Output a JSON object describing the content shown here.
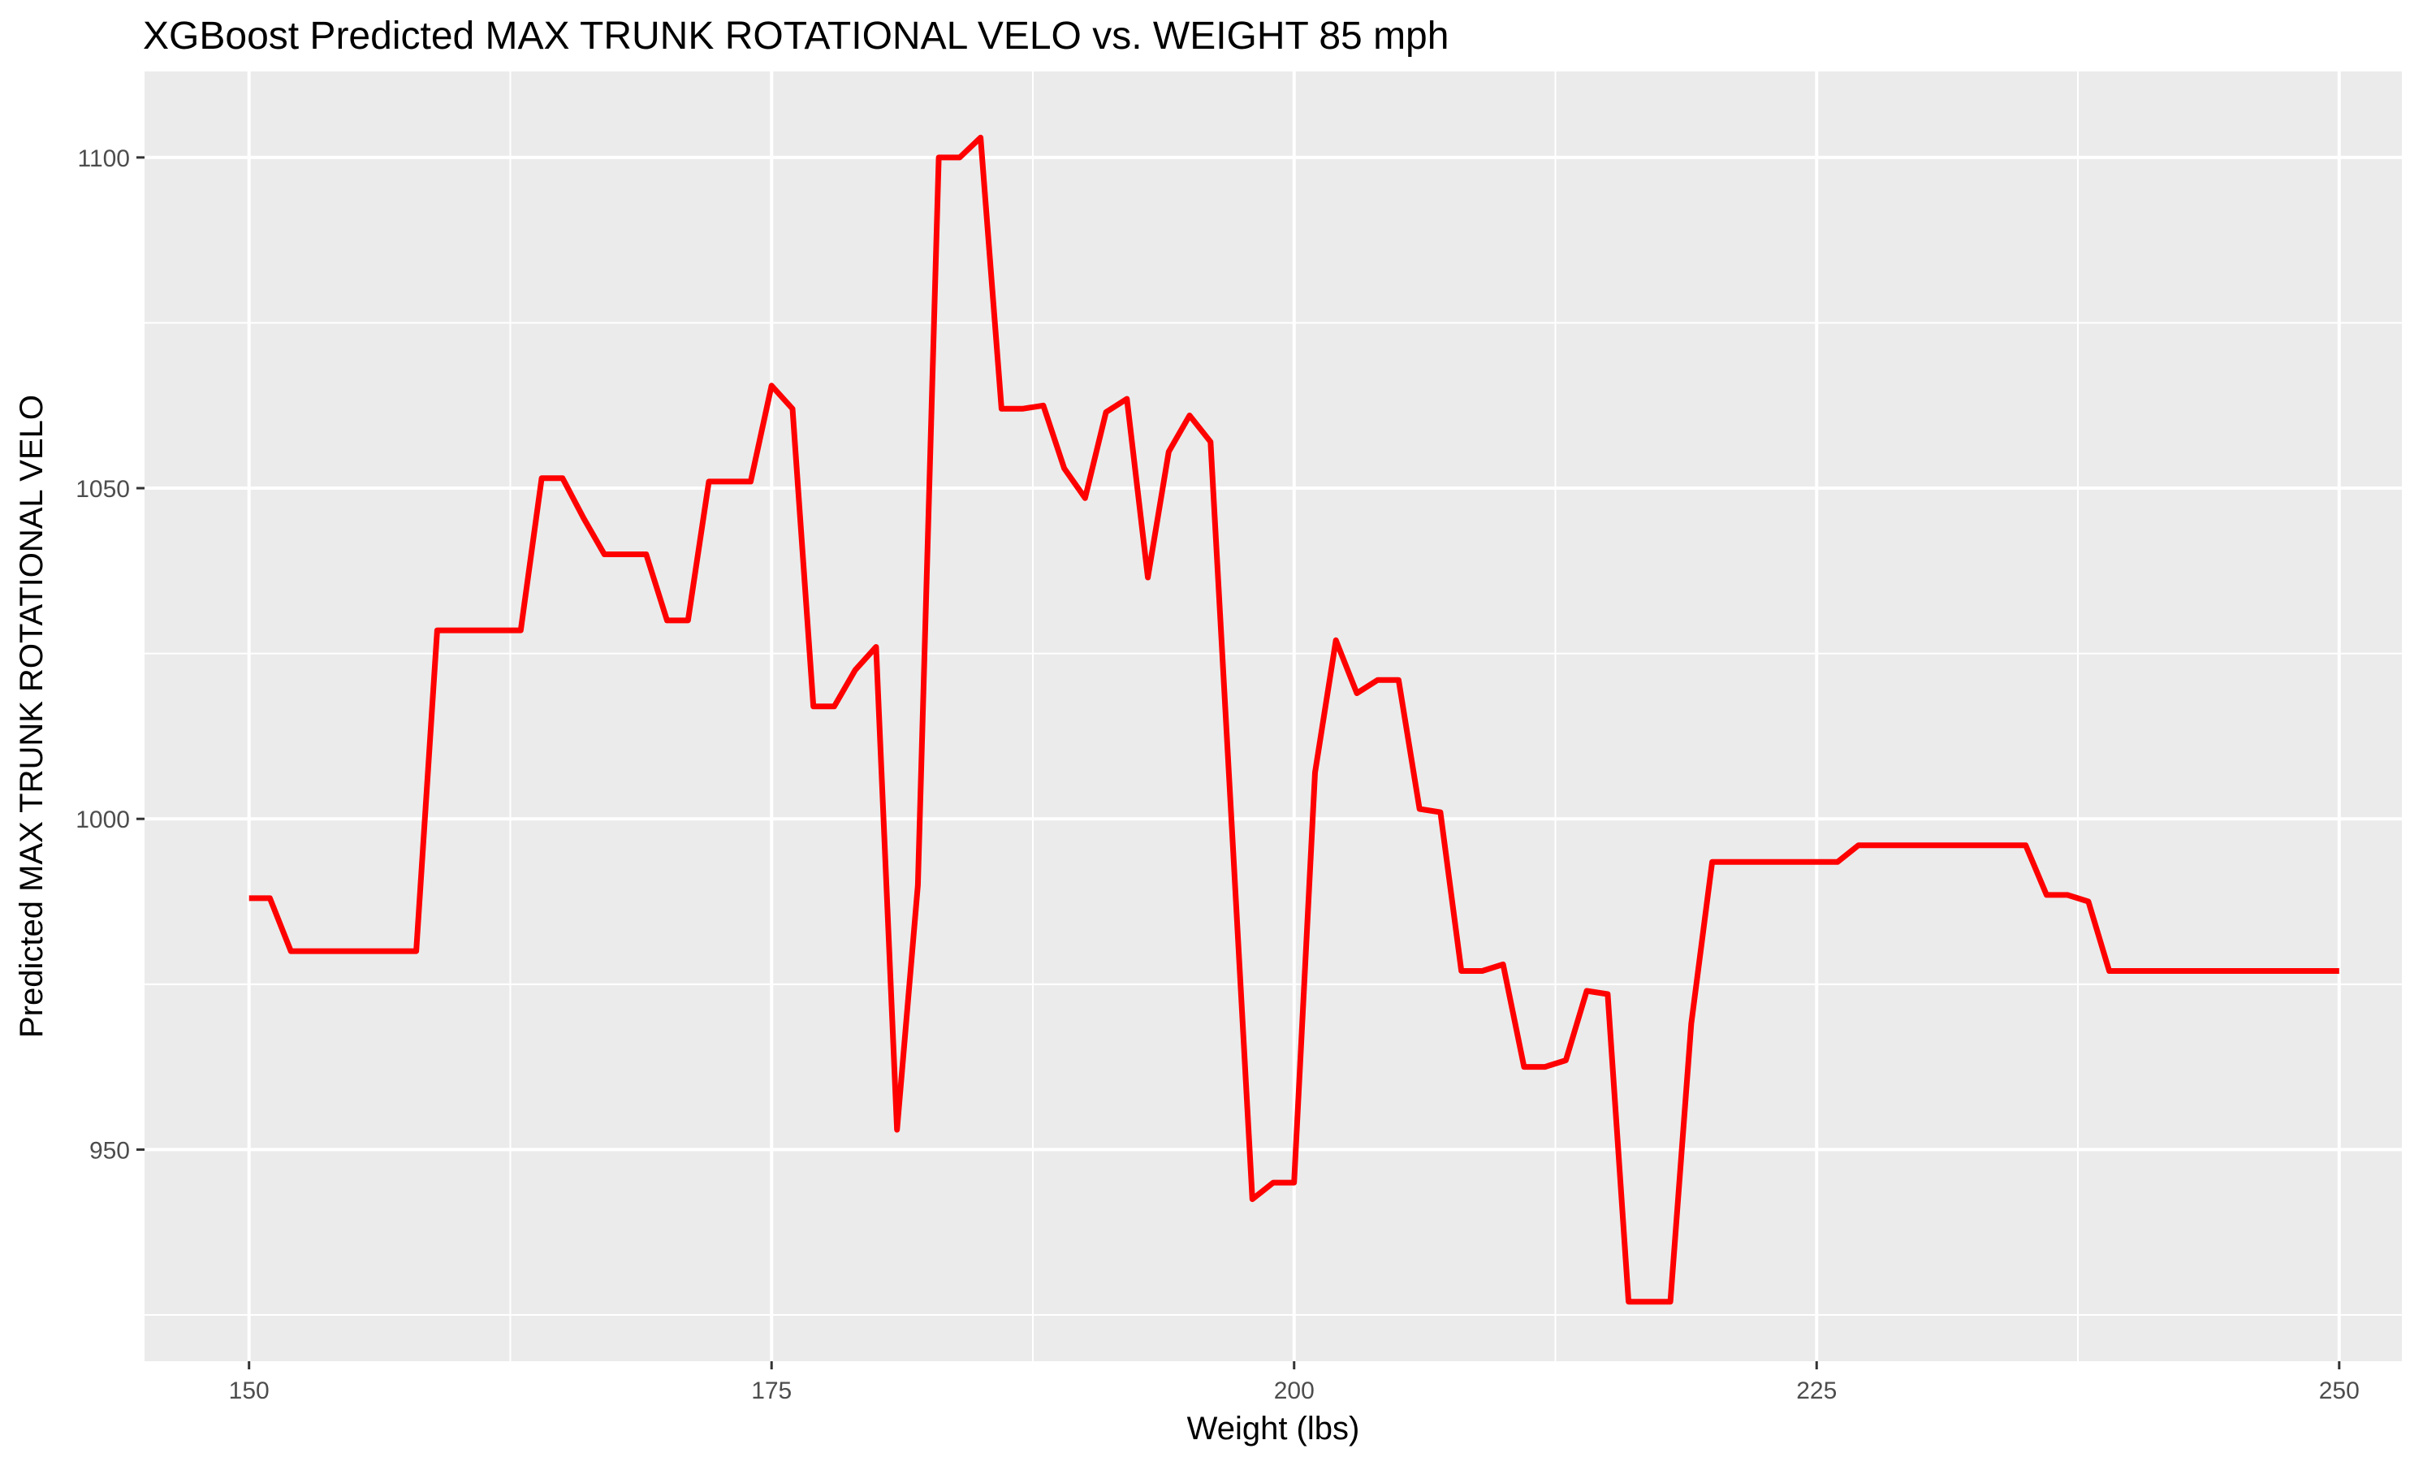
{
  "chart_data": {
    "type": "line",
    "title": "XGBoost Predicted MAX TRUNK ROTATIONAL VELO vs. WEIGHT 85 mph",
    "xlabel": "Weight (lbs)",
    "ylabel": "Predicted MAX TRUNK ROTATIONAL VELO",
    "xlim": [
      145,
      253
    ],
    "ylim": [
      918,
      1113
    ],
    "x_ticks": [
      150,
      175,
      200,
      225,
      250
    ],
    "y_ticks": [
      950,
      1000,
      1050,
      1100
    ],
    "x_tick_labels": [
      "150",
      "175",
      "200",
      "225",
      "250"
    ],
    "y_tick_labels": [
      "950",
      "1000",
      "1050",
      "1100"
    ],
    "grid": true,
    "legend": "none",
    "colors": {
      "line": "#ff0000",
      "panel": "#ebebeb",
      "grid": "#ffffff",
      "tick_text": "#4d4d4d"
    },
    "series": [
      {
        "x": [
          150,
          151,
          152,
          153,
          154,
          155,
          156,
          157,
          158,
          159,
          160,
          161,
          162,
          163,
          164,
          165,
          166,
          167,
          168,
          169,
          170,
          171,
          172,
          173,
          174,
          175,
          176,
          177,
          178,
          179,
          180,
          181,
          182,
          183,
          184,
          185,
          186,
          187,
          188,
          189,
          190,
          191,
          192,
          193,
          194,
          195,
          196,
          197,
          198,
          199,
          200,
          201,
          202,
          203,
          204,
          205,
          206,
          207,
          208,
          209,
          210,
          211,
          212,
          213,
          214,
          215,
          216,
          217,
          218,
          219,
          220,
          221,
          222,
          223,
          224,
          225,
          226,
          227,
          228,
          229,
          230,
          231,
          232,
          233,
          234,
          235,
          236,
          237,
          238,
          239,
          240,
          241,
          242,
          243,
          244,
          245,
          246,
          247,
          248,
          249,
          250
        ],
        "y": [
          988,
          988,
          980,
          980,
          980,
          980,
          980,
          980,
          980,
          1028.5,
          1028.5,
          1028.5,
          1028.5,
          1028.5,
          1051.5,
          1051.5,
          1045.5,
          1040,
          1040,
          1040,
          1030,
          1030,
          1051,
          1051,
          1051,
          1065.5,
          1062,
          1017,
          1017,
          1022.5,
          1026,
          953,
          990,
          1100,
          1100,
          1103,
          1062,
          1062,
          1062.5,
          1053,
          1048.5,
          1061.5,
          1063.5,
          1036.5,
          1055.5,
          1061,
          1057,
          1000,
          942.5,
          945,
          945,
          1007,
          1027,
          1019,
          1021,
          1021,
          1001.5,
          1001,
          977,
          977,
          978,
          962.5,
          962.5,
          963.5,
          974,
          973.5,
          927,
          927,
          927,
          969,
          993.5,
          993.5,
          993.5,
          993.5,
          993.5,
          993.5,
          993.5,
          996,
          996,
          996,
          996,
          996,
          996,
          996,
          996,
          996,
          988.5,
          988.5,
          987.5,
          977,
          977,
          977,
          977,
          977,
          977,
          977,
          977,
          977,
          977,
          977,
          977
        ]
      }
    ]
  }
}
